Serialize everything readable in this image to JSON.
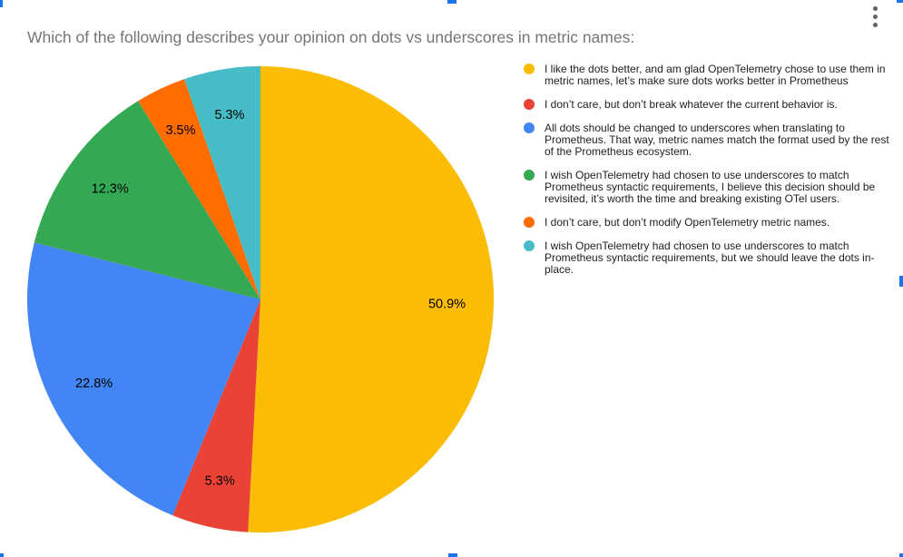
{
  "header": {
    "title": "Which of the following describes your opinion on dots vs underscores in metric names:",
    "title_color": "#757575"
  },
  "menu": {
    "more_options_icon": "kebab-vertical-dots",
    "icon_color": "#5f6368"
  },
  "selection": {
    "handle_color": "#1a73e8",
    "handles": [
      "top-left",
      "top-middle",
      "top-right",
      "right-middle",
      "bottom-right",
      "bottom-middle",
      "bottom-left"
    ]
  },
  "chart_data": {
    "type": "pie",
    "title": "Which of the following describes your opinion on dots vs underscores in metric names:",
    "legend_position": "right",
    "start_angle_deg": 0,
    "direction": "clockwise",
    "label_color": "#000000",
    "slices": [
      {
        "label": "I like the dots better, and am glad OpenTelemetry chose to use them in metric names, let’s make sure dots works better in Prometheus",
        "value": 50.9,
        "percent_label": "50.9%",
        "color": "#FBBC04"
      },
      {
        "label": "I don’t care, but don’t break whatever the current behavior is.",
        "value": 5.3,
        "percent_label": "5.3%",
        "color": "#EA4335"
      },
      {
        "label": "All dots should be changed to underscores when translating to Prometheus. That way, metric names match the format used by the rest of the Prometheus ecosystem.",
        "value": 22.8,
        "percent_label": "22.8%",
        "color": "#4285F4"
      },
      {
        "label": "I wish OpenTelemetry had chosen to use underscores to match Prometheus syntactic requirements, I believe this decision should be revisited, it’s worth the time and breaking existing OTel users.",
        "value": 12.3,
        "percent_label": "12.3%",
        "color": "#34A853"
      },
      {
        "label": "I don’t care, but don’t modify OpenTelemetry metric names.",
        "value": 3.5,
        "percent_label": "3.5%",
        "color": "#FF6D01"
      },
      {
        "label": "I wish OpenTelemetry had chosen to use underscores to match Prometheus syntactic requirements, but we should leave the dots in-place.",
        "value": 5.3,
        "percent_label": "5.3%",
        "color": "#46BDC6"
      }
    ]
  }
}
